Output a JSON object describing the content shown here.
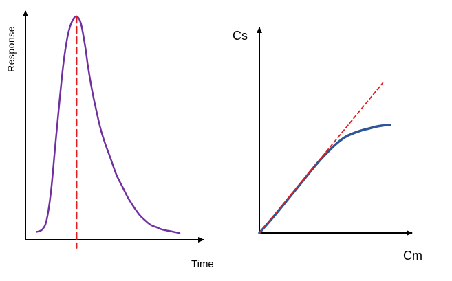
{
  "chart_data": [
    {
      "type": "line",
      "title": "",
      "xlabel": "Time",
      "ylabel": "Response",
      "xlim": [
        0,
        100
      ],
      "ylim": [
        0,
        100
      ],
      "grid": false,
      "colors": {
        "curve": "#7030a0",
        "peak_line": "#e02020",
        "axis": "#000000"
      },
      "series": [
        {
          "x": [
            0,
            4,
            7,
            10,
            13,
            16,
            19,
            22,
            25,
            28,
            31,
            34,
            36,
            39,
            42,
            45,
            48,
            52,
            56,
            60,
            64,
            68,
            72,
            76,
            80,
            84,
            88,
            92,
            96,
            100
          ],
          "y": [
            5,
            6,
            10,
            22,
            42,
            62,
            80,
            92,
            98,
            100,
            97,
            87,
            78,
            67,
            58,
            50,
            44,
            37,
            30,
            25,
            20,
            16,
            12.5,
            10,
            8,
            7,
            6,
            5.5,
            5,
            4.5
          ]
        }
      ],
      "annotations": [
        {
          "type": "vertical-dashed-line",
          "x": 28
        }
      ]
    },
    {
      "type": "line",
      "title": "",
      "xlabel": "Cm",
      "ylabel": "Cs",
      "xlim": [
        0,
        100
      ],
      "ylim": [
        0,
        100
      ],
      "grid": false,
      "colors": {
        "curve": "#2f5597",
        "tangent": "#e02020",
        "axis": "#000000"
      },
      "series": [
        {
          "x": [
            0,
            10,
            20,
            30,
            40,
            50,
            55,
            60,
            65,
            70,
            75,
            80,
            85,
            90
          ],
          "y": [
            0,
            13,
            27,
            41,
            55,
            67,
            72,
            76,
            78.5,
            80.5,
            82,
            83.5,
            84.5,
            85
          ]
        },
        {
          "x": [
            0,
            85
          ],
          "y": [
            0,
            118
          ]
        }
      ]
    }
  ]
}
